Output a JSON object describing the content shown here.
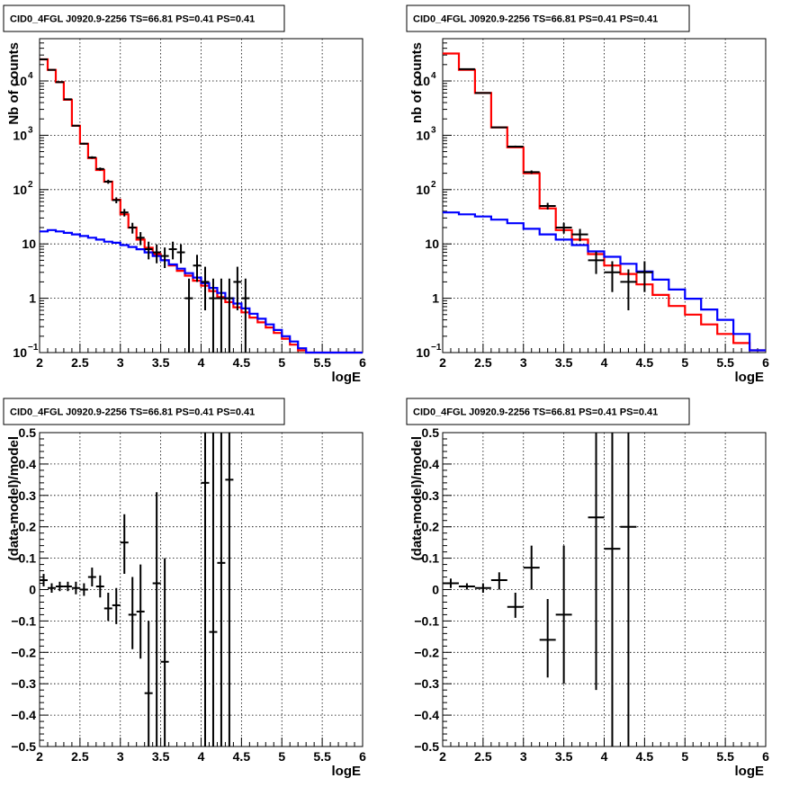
{
  "figure": {
    "colors": {
      "data": "#000000",
      "total_model": "#ff0000",
      "background_model": "#0000ff",
      "grid": "#000000"
    }
  },
  "chart_data": [
    {
      "id": "top-left",
      "type": "line",
      "title": "CID0_4FGL J0920.9-2256 TS=66.81 PS=0.41 PS=0.41",
      "xlabel": "logE",
      "ylabel": "Nb of counts",
      "xlim": [
        2,
        6
      ],
      "ylim": [
        0.1,
        60000
      ],
      "yscale": "log",
      "grid": true,
      "xticks": [
        "2",
        "2.5",
        "3",
        "3.5",
        "4",
        "4.5",
        "5",
        "5.5",
        "6"
      ],
      "yticks": [
        {
          "v": 0.1,
          "base": "10",
          "exp": "−1"
        },
        {
          "v": 1,
          "label": "1"
        },
        {
          "v": 10,
          "label": "10"
        },
        {
          "v": 100,
          "base": "10",
          "exp": "2"
        },
        {
          "v": 1000,
          "base": "10",
          "exp": "3"
        },
        {
          "v": 10000,
          "base": "10",
          "exp": "4"
        }
      ],
      "series": [
        {
          "role": "total_model",
          "kind": "step",
          "bin_edges_start": 2.0,
          "bin_width": 0.1,
          "values": [
            25000,
            16000,
            9500,
            4500,
            1500,
            700,
            380,
            230,
            140,
            65,
            35,
            20,
            12,
            8.5,
            6.5,
            5.0,
            4.0,
            3.2,
            2.6,
            2.1,
            1.7,
            1.35,
            1.05,
            0.85,
            0.68,
            0.55,
            0.44,
            0.36,
            0.29,
            0.23,
            0.18,
            0.14,
            0.11,
            0.1,
            0.1,
            0.1,
            0.1,
            0.1,
            0.1,
            0.1
          ]
        },
        {
          "role": "background_model",
          "kind": "step",
          "bin_edges_start": 2.0,
          "bin_width": 0.1,
          "values": [
            17,
            18,
            17,
            16,
            15,
            14,
            13,
            12,
            11,
            10.5,
            9.5,
            8.8,
            8,
            7,
            6,
            5,
            4.2,
            3.5,
            2.9,
            2.4,
            1.9,
            1.55,
            1.25,
            1.0,
            0.8,
            0.65,
            0.52,
            0.42,
            0.33,
            0.26,
            0.2,
            0.16,
            0.12,
            0.1,
            0.1,
            0.1,
            0.1,
            0.1,
            0.1,
            0.1
          ]
        },
        {
          "role": "data",
          "kind": "errorbar",
          "xerr": 0.05,
          "points": [
            {
              "x": 2.05,
              "y": 25000,
              "lo": 24800,
              "hi": 25200
            },
            {
              "x": 2.15,
              "y": 16000,
              "lo": 15850,
              "hi": 16150
            },
            {
              "x": 2.25,
              "y": 9500,
              "lo": 9400,
              "hi": 9600
            },
            {
              "x": 2.35,
              "y": 4600,
              "lo": 4530,
              "hi": 4670
            },
            {
              "x": 2.45,
              "y": 1500,
              "lo": 1460,
              "hi": 1540
            },
            {
              "x": 2.55,
              "y": 700,
              "lo": 675,
              "hi": 725
            },
            {
              "x": 2.65,
              "y": 390,
              "lo": 370,
              "hi": 410
            },
            {
              "x": 2.75,
              "y": 240,
              "lo": 225,
              "hi": 255
            },
            {
              "x": 2.85,
              "y": 140,
              "lo": 128,
              "hi": 152
            },
            {
              "x": 2.95,
              "y": 64,
              "lo": 56,
              "hi": 72
            },
            {
              "x": 3.05,
              "y": 38,
              "lo": 32,
              "hi": 44
            },
            {
              "x": 3.15,
              "y": 20,
              "lo": 15.5,
              "hi": 24.5
            },
            {
              "x": 3.25,
              "y": 13,
              "lo": 9.5,
              "hi": 16.5
            },
            {
              "x": 3.35,
              "y": 8,
              "lo": 5.2,
              "hi": 11
            },
            {
              "x": 3.45,
              "y": 7,
              "lo": 4.4,
              "hi": 9.8
            },
            {
              "x": 3.55,
              "y": 6,
              "lo": 3.6,
              "hi": 8.6
            },
            {
              "x": 3.65,
              "y": 8,
              "lo": 5.2,
              "hi": 11
            },
            {
              "x": 3.75,
              "y": 7,
              "lo": 4.4,
              "hi": 9.8
            },
            {
              "x": 3.85,
              "y": 1,
              "lo": 0.1,
              "hi": 2.3
            },
            {
              "x": 3.95,
              "y": 4,
              "lo": 2.0,
              "hi": 6.3
            },
            {
              "x": 4.05,
              "y": 2,
              "lo": 0.6,
              "hi": 3.8
            },
            {
              "x": 4.15,
              "y": 1,
              "lo": 0.1,
              "hi": 2.3
            },
            {
              "x": 4.25,
              "y": 1,
              "lo": 0.1,
              "hi": 2.3
            },
            {
              "x": 4.35,
              "y": 1,
              "lo": 0.1,
              "hi": 2.3
            },
            {
              "x": 4.45,
              "y": 2,
              "lo": 0.6,
              "hi": 3.8
            },
            {
              "x": 4.55,
              "y": 1,
              "lo": 0.1,
              "hi": 2.3
            }
          ]
        }
      ]
    },
    {
      "id": "top-right",
      "type": "line",
      "title": "CID0_4FGL J0920.9-2256 TS=66.81 PS=0.41 PS=0.41",
      "xlabel": "logE",
      "ylabel": "nb of counts",
      "xlim": [
        2,
        6
      ],
      "ylim": [
        0.1,
        60000
      ],
      "yscale": "log",
      "grid": true,
      "xticks": [
        "2",
        "2.5",
        "3",
        "3.5",
        "4",
        "4.5",
        "5",
        "5.5",
        "6"
      ],
      "yticks": [
        {
          "v": 0.1,
          "base": "10",
          "exp": "−1"
        },
        {
          "v": 1,
          "label": "1"
        },
        {
          "v": 10,
          "label": "10"
        },
        {
          "v": 100,
          "base": "10",
          "exp": "2"
        },
        {
          "v": 1000,
          "base": "10",
          "exp": "3"
        },
        {
          "v": 10000,
          "base": "10",
          "exp": "4"
        }
      ],
      "series": [
        {
          "role": "total_model",
          "kind": "step",
          "bin_edges_start": 2.0,
          "bin_width": 0.2,
          "values": [
            32000,
            16000,
            6000,
            1400,
            600,
            200,
            45,
            18,
            12,
            6.5,
            4.0,
            2.8,
            1.8,
            1.15,
            0.72,
            0.5,
            0.33,
            0.22,
            0.15,
            0.11
          ]
        },
        {
          "role": "background_model",
          "kind": "step",
          "bin_edges_start": 2.0,
          "bin_width": 0.2,
          "values": [
            38,
            35,
            32,
            28,
            24,
            19,
            15,
            12,
            9.5,
            7.3,
            5.8,
            4.3,
            3.1,
            2.2,
            1.45,
            0.98,
            0.62,
            0.4,
            0.22,
            0.11
          ]
        },
        {
          "role": "data",
          "kind": "errorbar",
          "xerr": 0.1,
          "points": [
            {
              "x": 2.3,
              "y": 16500,
              "lo": 16300,
              "hi": 16700
            },
            {
              "x": 2.5,
              "y": 6000,
              "lo": 5920,
              "hi": 6080
            },
            {
              "x": 2.7,
              "y": 1400,
              "lo": 1360,
              "hi": 1440
            },
            {
              "x": 2.9,
              "y": 620,
              "lo": 595,
              "hi": 645
            },
            {
              "x": 3.1,
              "y": 210,
              "lo": 195,
              "hi": 225
            },
            {
              "x": 3.3,
              "y": 50,
              "lo": 43,
              "hi": 57
            },
            {
              "x": 3.5,
              "y": 20,
              "lo": 15.5,
              "hi": 24.5
            },
            {
              "x": 3.7,
              "y": 15,
              "lo": 11.2,
              "hi": 18.9
            },
            {
              "x": 3.9,
              "y": 5,
              "lo": 2.8,
              "hi": 7.2
            },
            {
              "x": 4.1,
              "y": 3,
              "lo": 1.3,
              "hi": 4.8
            },
            {
              "x": 4.3,
              "y": 2,
              "lo": 0.6,
              "hi": 3.4
            },
            {
              "x": 4.5,
              "y": 3,
              "lo": 1.3,
              "hi": 4.8
            }
          ]
        }
      ]
    },
    {
      "id": "bottom-left",
      "type": "scatter",
      "title": "CID0_4FGL J0920.9-2256 TS=66.81 PS=0.41 PS=0.41",
      "xlabel": "logE",
      "ylabel": "(data-model)/model",
      "xlim": [
        2,
        6
      ],
      "ylim": [
        -0.5,
        0.5
      ],
      "yscale": "linear",
      "grid": true,
      "xticks": [
        "2",
        "2.5",
        "3",
        "3.5",
        "4",
        "4.5",
        "5",
        "5.5",
        "6"
      ],
      "yticks": [
        {
          "v": -0.5,
          "label": "−0.5"
        },
        {
          "v": -0.4,
          "label": "−0.4"
        },
        {
          "v": -0.3,
          "label": "−0.3"
        },
        {
          "v": -0.2,
          "label": "−0.2"
        },
        {
          "v": -0.1,
          "label": "−0.1"
        },
        {
          "v": 0,
          "label": "0"
        },
        {
          "v": 0.1,
          "label": "0.1"
        },
        {
          "v": 0.2,
          "label": "0.2"
        },
        {
          "v": 0.3,
          "label": "0.3"
        },
        {
          "v": 0.4,
          "label": "0.4"
        },
        {
          "v": 0.5,
          "label": "0.5"
        }
      ],
      "series": [
        {
          "role": "data",
          "kind": "errorbar",
          "xerr": 0.05,
          "points": [
            {
              "x": 2.05,
              "y": 0.03,
              "lo": 0.01,
              "hi": 0.05
            },
            {
              "x": 2.15,
              "y": 0.005,
              "lo": -0.01,
              "hi": 0.02
            },
            {
              "x": 2.25,
              "y": 0.01,
              "lo": -0.005,
              "hi": 0.025
            },
            {
              "x": 2.35,
              "y": 0.01,
              "lo": -0.005,
              "hi": 0.025
            },
            {
              "x": 2.45,
              "y": 0.005,
              "lo": -0.015,
              "hi": 0.025
            },
            {
              "x": 2.55,
              "y": 0.0,
              "lo": -0.02,
              "hi": 0.02
            },
            {
              "x": 2.65,
              "y": 0.04,
              "lo": 0.01,
              "hi": 0.07
            },
            {
              "x": 2.75,
              "y": 0.01,
              "lo": -0.025,
              "hi": 0.045
            },
            {
              "x": 2.85,
              "y": -0.06,
              "lo": -0.1,
              "hi": -0.01
            },
            {
              "x": 2.95,
              "y": -0.05,
              "lo": -0.11,
              "hi": 0.005
            },
            {
              "x": 3.05,
              "y": 0.15,
              "lo": 0.05,
              "hi": 0.24
            },
            {
              "x": 3.15,
              "y": -0.08,
              "lo": -0.19,
              "hi": 0.04
            },
            {
              "x": 3.25,
              "y": -0.07,
              "lo": -0.22,
              "hi": 0.08
            },
            {
              "x": 3.35,
              "y": -0.33,
              "lo": -0.5,
              "hi": -0.1
            },
            {
              "x": 3.45,
              "y": 0.02,
              "lo": -0.5,
              "hi": 0.31
            },
            {
              "x": 3.55,
              "y": -0.23,
              "lo": -0.5,
              "hi": 0.1
            },
            {
              "x": 4.05,
              "y": 0.34,
              "lo": -0.5,
              "hi": 0.5
            },
            {
              "x": 4.15,
              "y": -0.135,
              "lo": -0.5,
              "hi": 0.5
            },
            {
              "x": 4.25,
              "y": 0.085,
              "lo": -0.5,
              "hi": 0.5
            },
            {
              "x": 4.35,
              "y": 0.35,
              "lo": -0.5,
              "hi": 0.5
            }
          ]
        }
      ]
    },
    {
      "id": "bottom-right",
      "type": "scatter",
      "title": "CID0_4FGL J0920.9-2256 TS=66.81 PS=0.41 PS=0.41",
      "xlabel": "logE",
      "ylabel": "(data-model)/model",
      "xlim": [
        2,
        6
      ],
      "ylim": [
        -0.5,
        0.5
      ],
      "yscale": "linear",
      "grid": true,
      "xticks": [
        "2",
        "2.5",
        "3",
        "3.5",
        "4",
        "4.5",
        "5",
        "5.5",
        "6"
      ],
      "yticks": [
        {
          "v": -0.5,
          "label": "−0.5"
        },
        {
          "v": -0.4,
          "label": "−0.4"
        },
        {
          "v": -0.3,
          "label": "−0.3"
        },
        {
          "v": -0.2,
          "label": "−0.2"
        },
        {
          "v": -0.1,
          "label": "−0.1"
        },
        {
          "v": 0,
          "label": "0"
        },
        {
          "v": 0.1,
          "label": "0.1"
        },
        {
          "v": 0.2,
          "label": "0.2"
        },
        {
          "v": 0.3,
          "label": "0.3"
        },
        {
          "v": 0.4,
          "label": "0.4"
        },
        {
          "v": 0.5,
          "label": "0.5"
        }
      ],
      "series": [
        {
          "role": "data",
          "kind": "errorbar",
          "xerr": 0.1,
          "points": [
            {
              "x": 2.1,
              "y": 0.02,
              "lo": 0.005,
              "hi": 0.035
            },
            {
              "x": 2.3,
              "y": 0.01,
              "lo": 0.0,
              "hi": 0.02
            },
            {
              "x": 2.5,
              "y": 0.005,
              "lo": -0.01,
              "hi": 0.02
            },
            {
              "x": 2.7,
              "y": 0.03,
              "lo": 0.0,
              "hi": 0.055
            },
            {
              "x": 2.9,
              "y": -0.055,
              "lo": -0.09,
              "hi": -0.01
            },
            {
              "x": 3.1,
              "y": 0.07,
              "lo": 0.0,
              "hi": 0.14
            },
            {
              "x": 3.3,
              "y": -0.16,
              "lo": -0.28,
              "hi": -0.03
            },
            {
              "x": 3.5,
              "y": -0.08,
              "lo": -0.3,
              "hi": 0.14
            },
            {
              "x": 3.9,
              "y": 0.23,
              "lo": -0.32,
              "hi": 0.5
            },
            {
              "x": 4.1,
              "y": 0.13,
              "lo": -0.5,
              "hi": 0.5
            },
            {
              "x": 4.3,
              "y": 0.2,
              "lo": -0.5,
              "hi": 0.5
            }
          ]
        }
      ]
    }
  ]
}
